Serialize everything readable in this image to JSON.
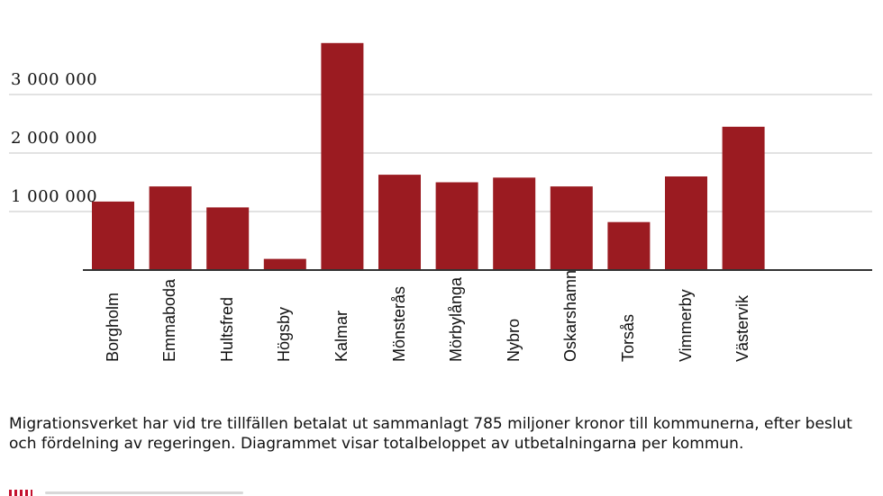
{
  "chart_data": {
    "type": "bar",
    "categories": [
      "Borgholm",
      "Emmaboda",
      "Hultsfred",
      "Högsby",
      "Kalmar",
      "Mönsterås",
      "Mörbylånga",
      "Nybro",
      "Oskarshamn",
      "Torsås",
      "Vimmerby",
      "Västervik"
    ],
    "values": [
      1170000,
      1430000,
      1070000,
      190000,
      3880000,
      1630000,
      1500000,
      1580000,
      1430000,
      820000,
      1600000,
      2450000
    ],
    "ylim": [
      0,
      3900000
    ],
    "yticks": [
      1000000,
      2000000,
      3000000
    ],
    "ytick_labels": [
      "1 000 000",
      "2 000 000",
      "3 000 000"
    ],
    "title": "",
    "xlabel": "",
    "ylabel": "",
    "grid": true,
    "legend": "none",
    "bar_color": "#9b1b21",
    "grid_color": "#d9d9d9",
    "axis_color": "#333333"
  },
  "caption": "Migrationsverket har vid tre tillfällen betalat ut sammanlagt 785 miljoner kronor till kommunerna, efter beslut och fördelning av regeringen. Diagrammet visar totalbeloppet av utbetalningarna per kommun.",
  "footer": {
    "logo_color": "#c4122f"
  }
}
